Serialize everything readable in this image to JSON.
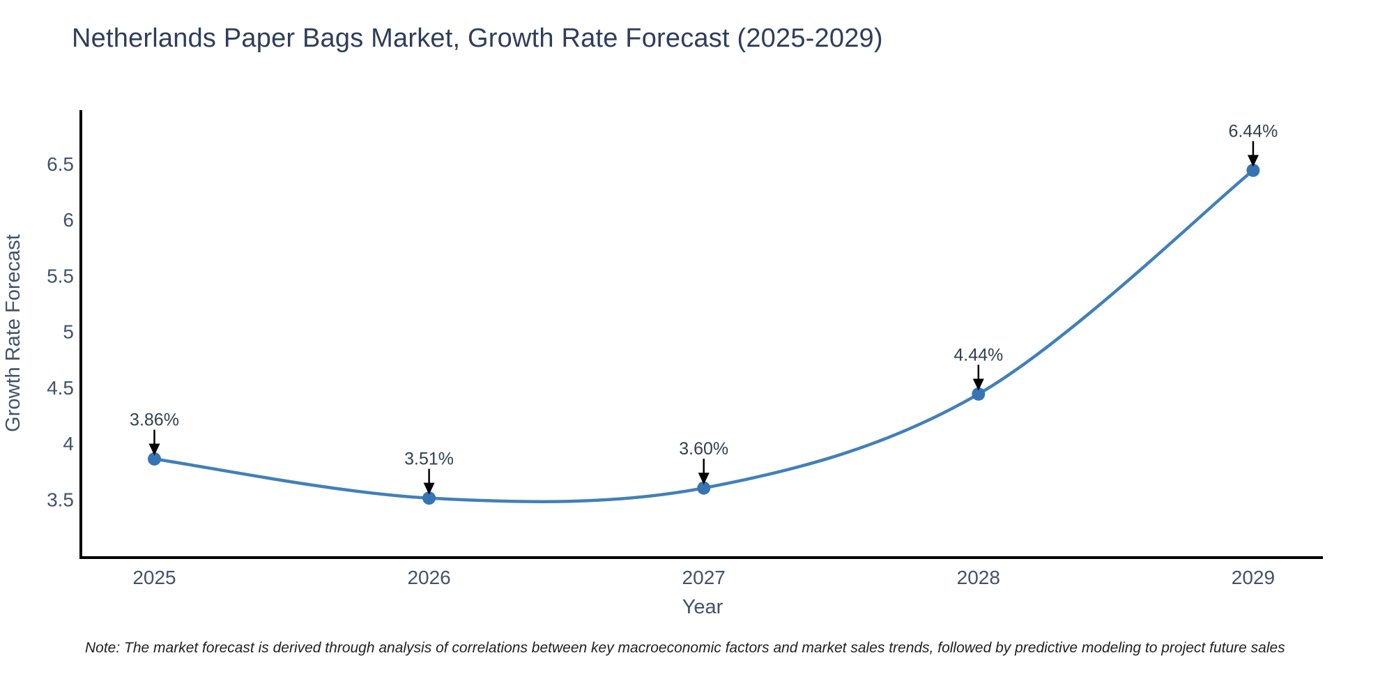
{
  "title": "Netherlands Paper Bags Market, Growth Rate Forecast (2025-2029)",
  "note": "Note: The market forecast is derived through analysis of correlations between key macroeconomic factors and market sales trends, followed by predictive modeling to project future sales",
  "chart_data": {
    "type": "line",
    "title": "Netherlands Paper Bags Market, Growth Rate Forecast (2025-2029)",
    "xlabel": "Year",
    "ylabel": "Growth Rate Forecast",
    "categories": [
      "2025",
      "2026",
      "2027",
      "2028",
      "2029"
    ],
    "series": [
      {
        "name": "Growth Rate Forecast",
        "values": [
          3.86,
          3.51,
          3.6,
          4.44,
          6.44
        ],
        "point_labels": [
          "3.86%",
          "3.51%",
          "3.60%",
          "4.44%",
          "6.44%"
        ]
      }
    ],
    "y_ticks": [
      3.5,
      4,
      4.5,
      5,
      5.5,
      6,
      6.5
    ],
    "ylim": [
      3.0,
      7.0
    ],
    "grid": false,
    "legend": false,
    "line_style": "spline",
    "marker_style": "circle",
    "annotation_style": "label-above-with-down-arrow",
    "colors": {
      "line": "#4180b9",
      "marker": "#3674b3",
      "axis_spine": "#000000",
      "tick_label": "#42516d",
      "axis_title": "#42516d",
      "chart_title": "#2e3d5a",
      "annotation_text": "#333f4f",
      "annotation_arrow": "#000000",
      "note_text": "#1f1f1f",
      "background": "#ffffff"
    }
  }
}
